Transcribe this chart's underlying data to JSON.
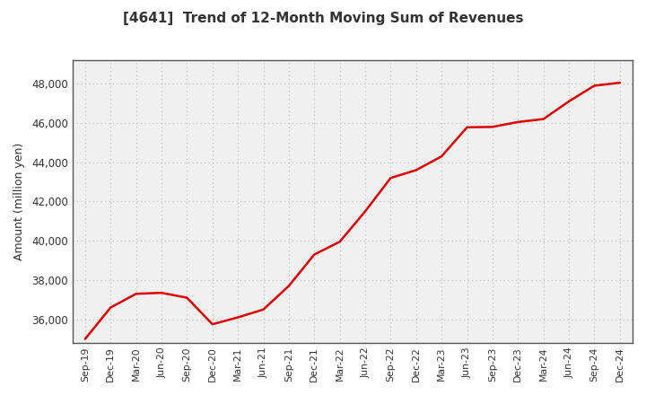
{
  "title": "[4641]  Trend of 12-Month Moving Sum of Revenues",
  "ylabel": "Amount (million yen)",
  "line_color": "#dd0000",
  "background_color": "#ffffff",
  "plot_bg_color": "#f0f0f0",
  "grid_color": "#bbbbbb",
  "ylim": [
    34800,
    49200
  ],
  "yticks": [
    36000,
    38000,
    40000,
    42000,
    44000,
    46000,
    48000
  ],
  "x_labels": [
    "Sep-19",
    "Dec-19",
    "Mar-20",
    "Jun-20",
    "Sep-20",
    "Dec-20",
    "Mar-21",
    "Jun-21",
    "Sep-21",
    "Dec-21",
    "Mar-22",
    "Jun-22",
    "Sep-22",
    "Dec-22",
    "Mar-23",
    "Jun-23",
    "Sep-23",
    "Dec-23",
    "Mar-24",
    "Jun-24",
    "Sep-24",
    "Dec-24"
  ],
  "values": [
    35000,
    36600,
    37300,
    37350,
    37100,
    35750,
    36100,
    36500,
    37700,
    39300,
    39950,
    41500,
    43200,
    43600,
    44300,
    45780,
    45800,
    46050,
    46200,
    47100,
    47900,
    48050
  ]
}
